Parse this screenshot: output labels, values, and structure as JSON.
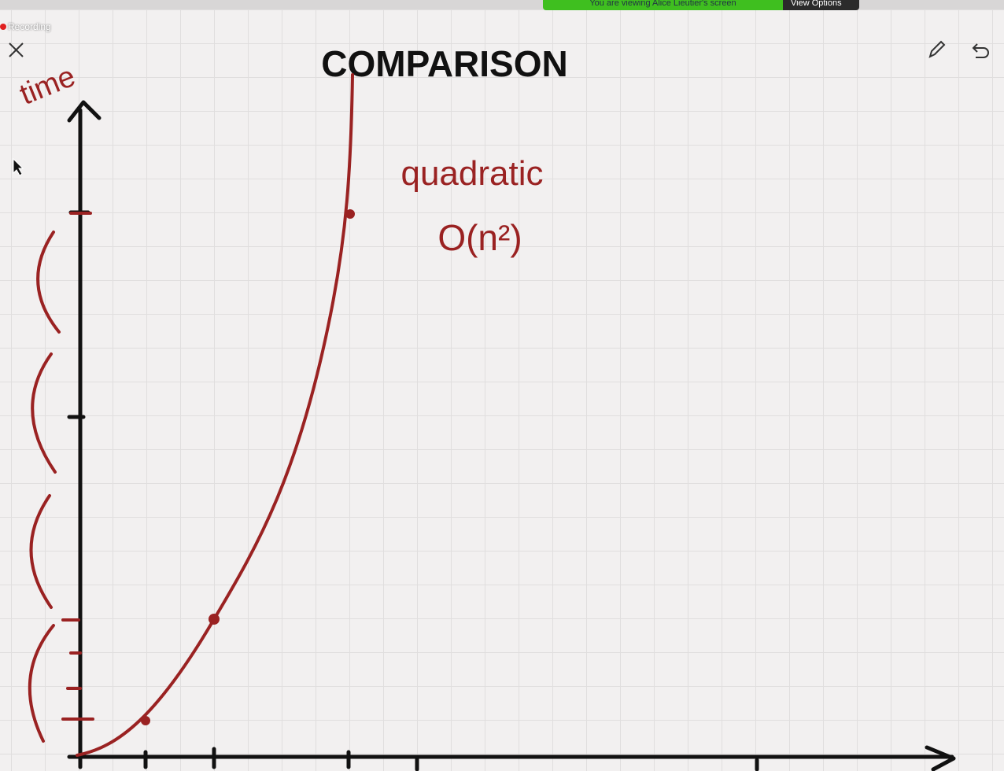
{
  "recording": "Recording",
  "banner": {
    "text": "You are viewing Alice Lieutier's screen",
    "button": "View Options"
  },
  "whiteboard": {
    "title": "COMPARISON",
    "y_axis_label": "time",
    "curve_label": "quadratic",
    "complexity": "O(n²)"
  }
}
